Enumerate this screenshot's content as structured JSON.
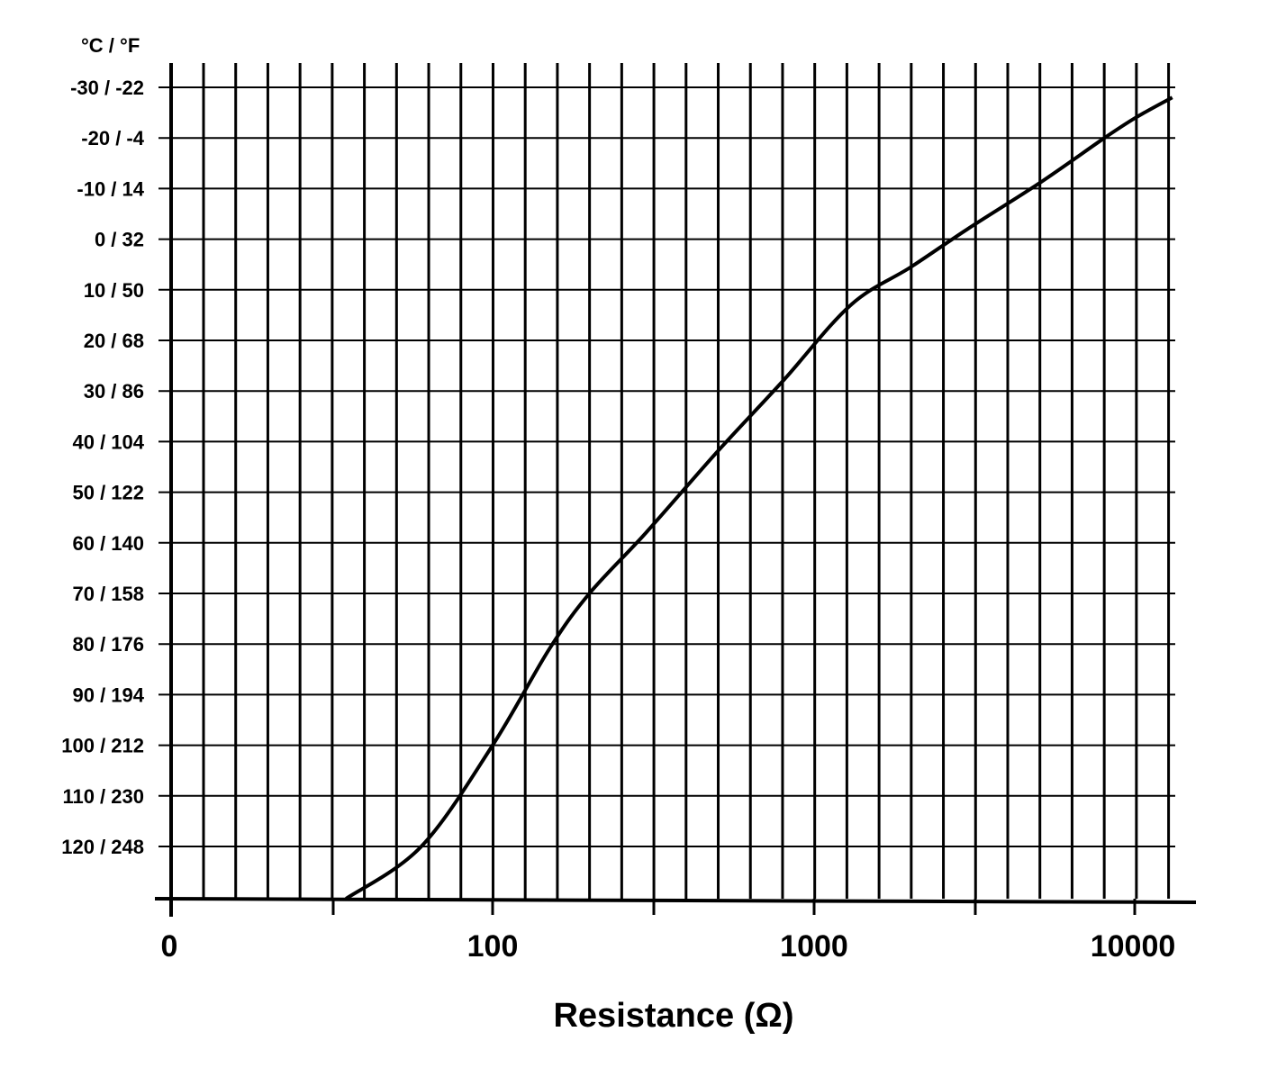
{
  "chart_data": {
    "type": "line",
    "title": "",
    "xlabel": "Resistance (Ω)",
    "ylabel": "°C / °F",
    "x_scale": "log",
    "y_reversed": true,
    "grid": true,
    "x_ticks": [
      "0",
      "100",
      "1000",
      "10000"
    ],
    "y_ticks": [
      "-30 / -22",
      "-20 / -4",
      "-10 / 14",
      "0 / 32",
      "10 / 50",
      "20 / 68",
      "30 / 86",
      "40 / 104",
      "50 / 122",
      "60 / 140",
      "70 / 158",
      "80 / 176",
      "90 / 194",
      "100 / 212",
      "110 /  230",
      "120 /  248"
    ],
    "y_values_celsius": [
      -30,
      -20,
      -10,
      0,
      10,
      20,
      30,
      40,
      50,
      60,
      70,
      80,
      90,
      100,
      110,
      120
    ],
    "series": [
      {
        "x": [
          13000,
          10000,
          8000,
          5000,
          3000,
          2000,
          1300,
          800,
          500,
          300,
          200,
          150,
          100,
          60,
          35
        ],
        "y": [
          -28,
          -24,
          -20,
          -11,
          -2,
          5.5,
          13,
          28,
          42,
          58,
          70,
          81,
          100,
          120,
          131
        ]
      }
    ]
  }
}
